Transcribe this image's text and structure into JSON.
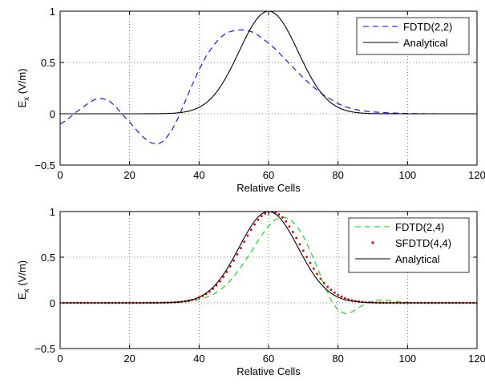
{
  "chart_data": [
    {
      "type": "line",
      "xlabel": "Relative Cells",
      "ylabel": "E",
      "ylabel_sub": "x",
      "ylabel_unit": " (V/m)",
      "xlim": [
        0,
        120
      ],
      "ylim": [
        -0.5,
        1
      ],
      "xticks": [
        "0",
        "20",
        "40",
        "60",
        "80",
        "100",
        "120"
      ],
      "yticks": [
        "−0.5",
        "0",
        "0.5",
        "1"
      ],
      "grid": true,
      "legend_position": "top-right",
      "series": [
        {
          "name": "FDTD(2,2)",
          "color": "#0000ff",
          "style": "dashed",
          "x": [
            0,
            2,
            4,
            6,
            8,
            10,
            12,
            14,
            16,
            18,
            20,
            22,
            24,
            26,
            28,
            30,
            32,
            34,
            36,
            38,
            40,
            42,
            44,
            46,
            48,
            50,
            52,
            54,
            56,
            58,
            60,
            62,
            64,
            66,
            68,
            70,
            72,
            74,
            76,
            78,
            80,
            82,
            84,
            86,
            88,
            90,
            95,
            100,
            105,
            110,
            115,
            120
          ],
          "y": [
            -0.1,
            -0.06,
            0.0,
            0.05,
            0.1,
            0.14,
            0.15,
            0.13,
            0.07,
            -0.01,
            -0.08,
            -0.16,
            -0.23,
            -0.28,
            -0.3,
            -0.26,
            -0.17,
            -0.04,
            0.12,
            0.28,
            0.43,
            0.56,
            0.66,
            0.74,
            0.79,
            0.81,
            0.82,
            0.81,
            0.79,
            0.74,
            0.69,
            0.63,
            0.56,
            0.49,
            0.42,
            0.35,
            0.29,
            0.23,
            0.18,
            0.14,
            0.1,
            0.07,
            0.05,
            0.035,
            0.025,
            0.018,
            0.008,
            0.003,
            0.001,
            0,
            0,
            0
          ]
        },
        {
          "name": "Analytical",
          "color": "#000000",
          "style": "solid",
          "function": "gaussian",
          "center": 60,
          "sigma": 8.5,
          "amplitude": 1
        }
      ]
    },
    {
      "type": "line",
      "xlabel": "Relative Cells",
      "ylabel": "E",
      "ylabel_sub": "x",
      "ylabel_unit": " (V/m)",
      "xlim": [
        0,
        120
      ],
      "ylim": [
        -0.5,
        1
      ],
      "xticks": [
        "0",
        "20",
        "40",
        "60",
        "80",
        "100",
        "120"
      ],
      "yticks": [
        "−0.5",
        "0",
        "0.5",
        "1"
      ],
      "grid": true,
      "legend_position": "top-right",
      "series": [
        {
          "name": "FDTD(2,4)",
          "color": "#00dd00",
          "style": "dashed",
          "x": [
            0,
            10,
            20,
            30,
            34,
            36,
            38,
            40,
            42,
            44,
            46,
            48,
            50,
            52,
            54,
            56,
            58,
            60,
            62,
            64,
            66,
            68,
            70,
            72,
            74,
            76,
            78,
            80,
            82,
            84,
            86,
            88,
            90,
            92,
            94,
            96,
            98,
            100,
            105,
            110,
            120
          ],
          "y": [
            0,
            0,
            0,
            0,
            0.005,
            0.01,
            0.02,
            0.04,
            0.06,
            0.09,
            0.14,
            0.2,
            0.29,
            0.39,
            0.5,
            0.62,
            0.74,
            0.84,
            0.91,
            0.94,
            0.92,
            0.85,
            0.73,
            0.57,
            0.39,
            0.2,
            0.03,
            -0.08,
            -0.12,
            -0.1,
            -0.05,
            -0.01,
            0.02,
            0.03,
            0.03,
            0.02,
            0.01,
            0.005,
            0,
            0,
            0
          ]
        },
        {
          "name": "SFDTD(4,4)",
          "color": "#dd0000",
          "style": "dots",
          "function": "gaussian",
          "center": 60.8,
          "sigma": 8.7,
          "amplitude": 1
        },
        {
          "name": "Analytical",
          "color": "#000000",
          "style": "solid",
          "function": "gaussian",
          "center": 60,
          "sigma": 8.5,
          "amplitude": 1
        }
      ]
    }
  ]
}
